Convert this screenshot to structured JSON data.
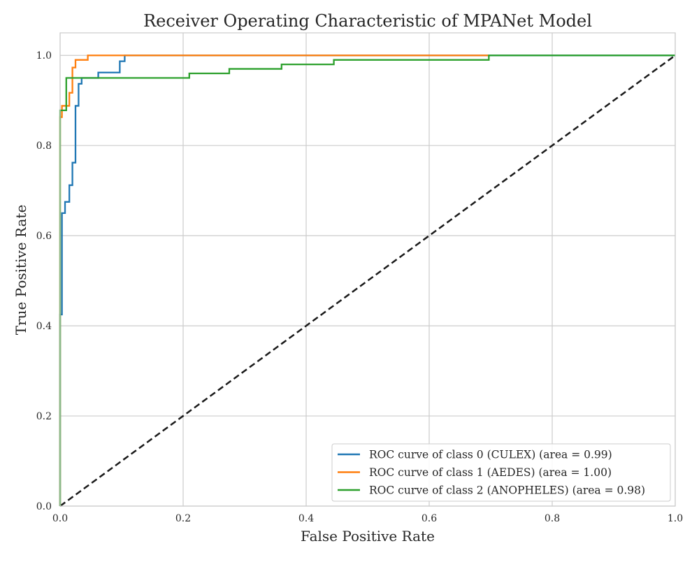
{
  "chart_data": {
    "type": "line",
    "title": "Receiver Operating Characteristic of MPANet Model",
    "xlabel": "False Positive Rate",
    "ylabel": "True Positive Rate",
    "xlim": [
      0.0,
      1.0
    ],
    "ylim": [
      0.0,
      1.05
    ],
    "xticks": [
      0.0,
      0.2,
      0.4,
      0.6,
      0.8,
      1.0
    ],
    "yticks": [
      0.0,
      0.2,
      0.4,
      0.6,
      0.8,
      1.0
    ],
    "xtick_labels": [
      "0.0",
      "0.2",
      "0.4",
      "0.6",
      "0.8",
      "1.0"
    ],
    "ytick_labels": [
      "0.0",
      "0.2",
      "0.4",
      "0.6",
      "0.8",
      "1.0"
    ],
    "grid": true,
    "legend_position": "lower-right",
    "series": [
      {
        "name": "ROC curve of class 0 (CULEX) (area = 0.99)",
        "color": "#1f77b4",
        "step": true,
        "x": [
          0.0,
          0.0,
          0.003,
          0.003,
          0.008,
          0.008,
          0.015,
          0.015,
          0.02,
          0.02,
          0.025,
          0.025,
          0.03,
          0.03,
          0.035,
          0.035,
          0.062,
          0.062,
          0.097,
          0.097,
          0.105,
          0.105,
          0.7,
          1.0
        ],
        "y": [
          0.0,
          0.425,
          0.425,
          0.65,
          0.65,
          0.675,
          0.675,
          0.712,
          0.712,
          0.762,
          0.762,
          0.888,
          0.888,
          0.937,
          0.937,
          0.95,
          0.95,
          0.962,
          0.962,
          0.987,
          0.987,
          1.0,
          1.0,
          1.0
        ]
      },
      {
        "name": "ROC curve of class 1 (AEDES) (area = 1.00)",
        "color": "#ff7f0e",
        "step": true,
        "x": [
          0.0,
          0.0,
          0.003,
          0.003,
          0.007,
          0.007,
          0.015,
          0.015,
          0.02,
          0.02,
          0.025,
          0.025,
          0.03,
          0.03,
          0.045,
          0.045,
          0.697
        ],
        "y": [
          0.0,
          0.863,
          0.863,
          0.888,
          0.888,
          0.888,
          0.888,
          0.917,
          0.917,
          0.973,
          0.973,
          0.99,
          0.99,
          0.99,
          0.99,
          1.0,
          1.0
        ]
      },
      {
        "name": "ROC curve of class 2 (ANOPHELES) (area = 0.98)",
        "color": "#2ca02c",
        "step": true,
        "x": [
          0.0,
          0.0,
          0.003,
          0.003,
          0.01,
          0.01,
          0.21,
          0.21,
          0.275,
          0.275,
          0.36,
          0.36,
          0.445,
          0.445,
          0.697,
          0.697,
          1.0
        ],
        "y": [
          0.0,
          0.878,
          0.878,
          0.878,
          0.878,
          0.95,
          0.95,
          0.96,
          0.96,
          0.97,
          0.97,
          0.98,
          0.98,
          0.99,
          0.99,
          1.0,
          1.0
        ]
      }
    ],
    "reference_line": {
      "x": [
        0.0,
        1.0
      ],
      "y": [
        0.0,
        1.0
      ],
      "color": "#1a1a1a",
      "style": "dashed"
    }
  }
}
